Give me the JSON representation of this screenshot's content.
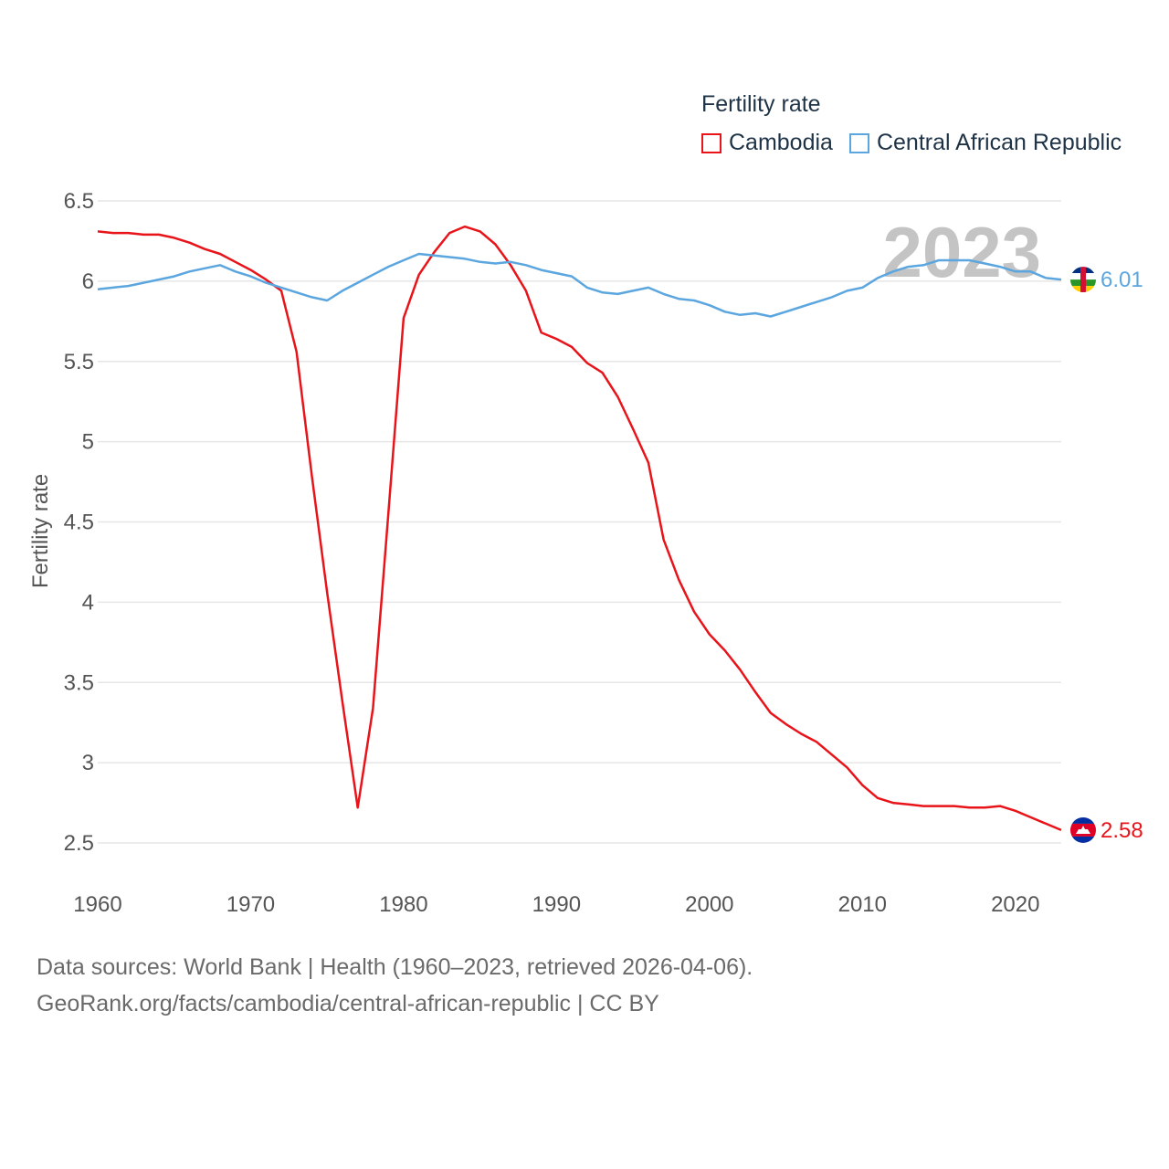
{
  "chart_data": {
    "type": "line",
    "title": "Fertility rate",
    "ylabel": "Fertility rate",
    "xlabel": "",
    "xlim": [
      1960,
      2023
    ],
    "ylim": [
      2.5,
      6.5
    ],
    "yticks": [
      "2.5",
      "3",
      "3.5",
      "4",
      "4.5",
      "5",
      "5.5",
      "6",
      "6.5"
    ],
    "xticks": [
      "1960",
      "1970",
      "1980",
      "1990",
      "2000",
      "2010",
      "2020"
    ],
    "year_watermark": "2023",
    "x": [
      1960,
      1961,
      1962,
      1963,
      1964,
      1965,
      1966,
      1967,
      1968,
      1969,
      1970,
      1971,
      1972,
      1973,
      1974,
      1975,
      1976,
      1977,
      1978,
      1979,
      1980,
      1981,
      1982,
      1983,
      1984,
      1985,
      1986,
      1987,
      1988,
      1989,
      1990,
      1991,
      1992,
      1993,
      1994,
      1995,
      1996,
      1997,
      1998,
      1999,
      2000,
      2001,
      2002,
      2003,
      2004,
      2005,
      2006,
      2007,
      2008,
      2009,
      2010,
      2011,
      2012,
      2013,
      2014,
      2015,
      2016,
      2017,
      2018,
      2019,
      2020,
      2021,
      2022,
      2023
    ],
    "series": [
      {
        "name": "Cambodia",
        "color": "#e8141a",
        "end_label": "2.58",
        "values": [
          6.31,
          6.3,
          6.3,
          6.29,
          6.29,
          6.27,
          6.24,
          6.2,
          6.17,
          6.12,
          6.07,
          6.01,
          5.94,
          5.56,
          4.79,
          4.06,
          3.38,
          2.72,
          3.34,
          4.55,
          5.77,
          6.04,
          6.18,
          6.3,
          6.34,
          6.31,
          6.23,
          6.1,
          5.94,
          5.68,
          5.64,
          5.59,
          5.49,
          5.43,
          5.28,
          5.08,
          4.87,
          4.39,
          4.14,
          3.94,
          3.8,
          3.7,
          3.58,
          3.44,
          3.31,
          3.24,
          3.18,
          3.13,
          3.05,
          2.97,
          2.86,
          2.78,
          2.75,
          2.74,
          2.73,
          2.73,
          2.73,
          2.72,
          2.72,
          2.73,
          2.7,
          2.66,
          2.62,
          2.58
        ]
      },
      {
        "name": "Central African Republic",
        "color": "#5ca6e0",
        "end_label": "6.01",
        "values": [
          5.95,
          5.96,
          5.97,
          5.99,
          6.01,
          6.03,
          6.06,
          6.08,
          6.1,
          6.06,
          6.03,
          5.99,
          5.96,
          5.93,
          5.9,
          5.88,
          5.94,
          5.99,
          6.04,
          6.09,
          6.13,
          6.17,
          6.16,
          6.15,
          6.14,
          6.12,
          6.11,
          6.12,
          6.1,
          6.07,
          6.05,
          6.03,
          5.96,
          5.93,
          5.92,
          5.94,
          5.96,
          5.92,
          5.89,
          5.88,
          5.85,
          5.81,
          5.79,
          5.8,
          5.78,
          5.81,
          5.84,
          5.87,
          5.9,
          5.94,
          5.96,
          6.02,
          6.06,
          6.09,
          6.1,
          6.13,
          6.13,
          6.13,
          6.11,
          6.09,
          6.06,
          6.06,
          6.02,
          6.01
        ]
      }
    ]
  },
  "legend": {
    "title": "Fertility rate",
    "items": [
      {
        "label": "Cambodia",
        "color": "#e8141a"
      },
      {
        "label": "Central African Republic",
        "color": "#5ca6e0"
      }
    ]
  },
  "footer": {
    "line1": "Data sources: World Bank | Health (1960–2023, retrieved 2026-04-06).",
    "line2": "GeoRank.org/facts/cambodia/central-african-republic | CC BY"
  }
}
